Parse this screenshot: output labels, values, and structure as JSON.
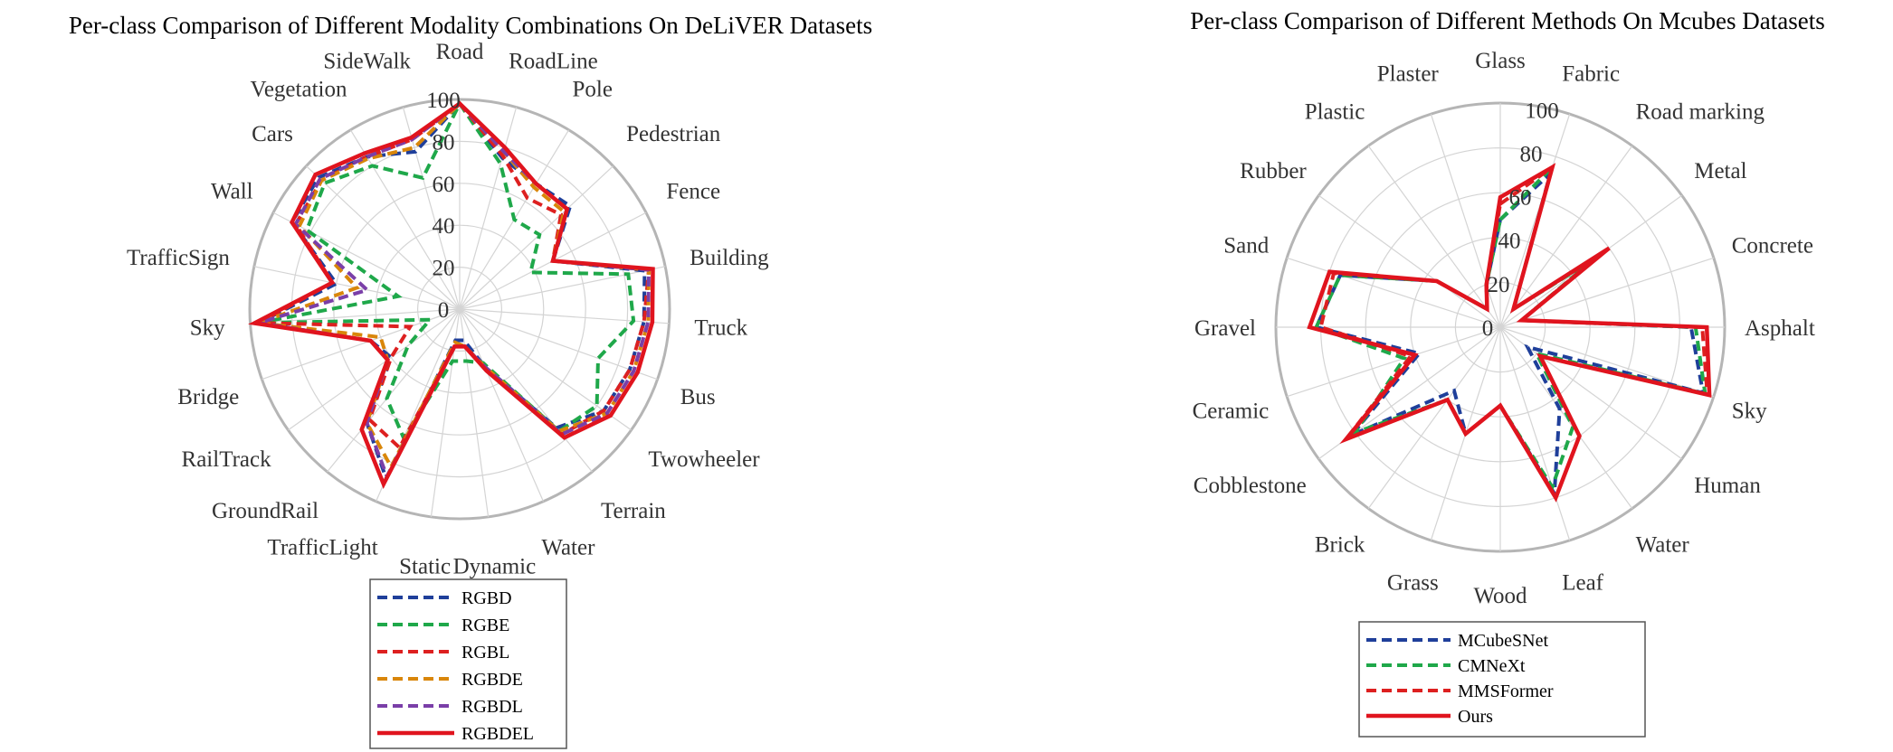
{
  "chart_data": [
    {
      "type": "radar",
      "title": "Per-class Comparison of Different Modality Combinations On DeLiVER Datasets",
      "rlim": [
        0,
        100
      ],
      "rticks": [
        0,
        20,
        40,
        60,
        80,
        100
      ],
      "grid": true,
      "legend_position": "bottom",
      "categories": [
        "Road",
        "RoadLine",
        "Pole",
        "Pedestrian",
        "Fence",
        "Building",
        "Truck",
        "Bus",
        "Twowheeler",
        "Terrain",
        "Water",
        "Dynamic",
        "Static",
        "TrafficLight",
        "GroundRail",
        "RailTrack",
        "Bridge",
        "Sky",
        "TrafficSign",
        "Wall",
        "Cars",
        "Vegetation",
        "SideWalk"
      ],
      "series": [
        {
          "name": "RGBD",
          "color": "#1f3f9a",
          "style": "dashed",
          "values": [
            98,
            75,
            70,
            72,
            50,
            90,
            88,
            86,
            84,
            73,
            30,
            15,
            15,
            88,
            70,
            40,
            45,
            96,
            60,
            90,
            92,
            85,
            78
          ]
        },
        {
          "name": "RGBE",
          "color": "#1fa84a",
          "style": "dashed",
          "values": [
            98,
            72,
            50,
            52,
            38,
            82,
            83,
            70,
            80,
            75,
            28,
            25,
            25,
            67,
            55,
            30,
            15,
            96,
            30,
            82,
            88,
            80,
            65
          ]
        },
        {
          "name": "RGBL",
          "color": "#dd2020",
          "style": "dashed",
          "values": [
            98,
            76,
            62,
            66,
            50,
            92,
            88,
            86,
            84,
            77,
            30,
            18,
            18,
            72,
            68,
            40,
            25,
            96,
            62,
            88,
            90,
            85,
            84
          ]
        },
        {
          "name": "RGBDE",
          "color": "#d9860a",
          "style": "dashed",
          "values": [
            98,
            78,
            68,
            68,
            50,
            92,
            90,
            88,
            86,
            75,
            30,
            18,
            16,
            82,
            70,
            42,
            40,
            96,
            50,
            86,
            90,
            84,
            80
          ]
        },
        {
          "name": "RGBDL",
          "color": "#7a3fa8",
          "style": "dashed",
          "values": [
            98,
            78,
            70,
            70,
            50,
            92,
            90,
            88,
            86,
            77,
            30,
            18,
            18,
            87,
            70,
            42,
            45,
            96,
            45,
            88,
            91,
            85,
            84
          ]
        },
        {
          "name": "RGBDEL",
          "color": "#e0141e",
          "style": "solid",
          "values": [
            98,
            80,
            70,
            70,
            50,
            94,
            92,
            90,
            88,
            79,
            32,
            18,
            18,
            91,
            74,
            42,
            45,
            98,
            62,
            90,
            94,
            87,
            85
          ]
        }
      ]
    },
    {
      "type": "radar",
      "title": "Per-class Comparison of Different Methods On Mcubes Datasets",
      "rlim": [
        0,
        100
      ],
      "rticks": [
        0,
        20,
        40,
        60,
        80,
        100
      ],
      "grid": true,
      "legend_position": "bottom",
      "categories": [
        "Glass",
        "Fabric",
        "Road marking",
        "Metal",
        "Concrete",
        "Asphalt",
        "Sky",
        "Human",
        "Water",
        "Leaf",
        "Wood",
        "Grass",
        "Brick",
        "Cobblestone",
        "Ceramic",
        "Gravel",
        "Sand",
        "Rubber",
        "Plastic",
        "Plaster"
      ],
      "series": [
        {
          "name": "MCubeSNet",
          "color": "#1f3f9a",
          "style": "dashed",
          "values": [
            48,
            72,
            10,
            55,
            10,
            85,
            95,
            15,
            45,
            78,
            35,
            50,
            35,
            82,
            38,
            82,
            75,
            35,
            10,
            20
          ]
        },
        {
          "name": "CMNeXt",
          "color": "#1fa84a",
          "style": "dashed",
          "values": [
            48,
            75,
            10,
            52,
            10,
            87,
            96,
            20,
            55,
            75,
            35,
            50,
            40,
            80,
            45,
            82,
            75,
            35,
            10,
            20
          ]
        },
        {
          "name": "MMSFormer",
          "color": "#dd2020",
          "style": "dashed",
          "values": [
            55,
            75,
            10,
            55,
            10,
            90,
            97,
            22,
            60,
            80,
            35,
            50,
            40,
            85,
            42,
            80,
            78,
            35,
            10,
            20
          ]
        },
        {
          "name": "Ours",
          "color": "#e0141e",
          "style": "solid",
          "values": [
            58,
            75,
            10,
            60,
            10,
            92,
            98,
            22,
            60,
            80,
            35,
            50,
            40,
            85,
            40,
            85,
            80,
            35,
            10,
            20
          ]
        }
      ]
    }
  ]
}
